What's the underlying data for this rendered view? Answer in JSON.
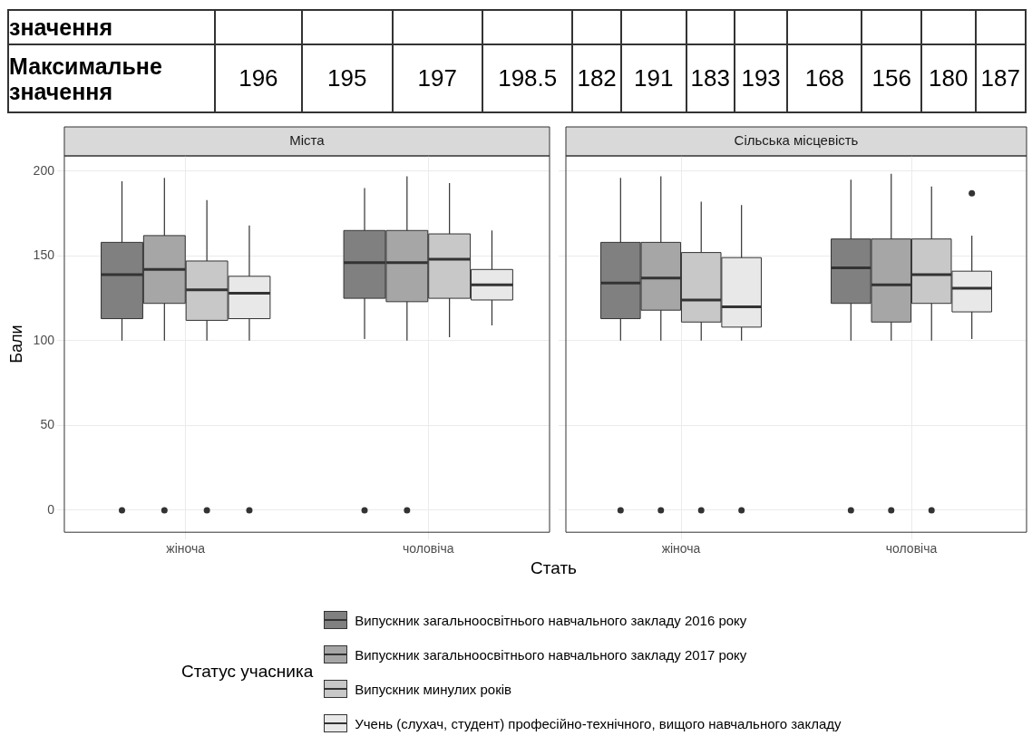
{
  "chart_data": [
    {
      "type": "box",
      "title": "Міста",
      "xlabel": "Стать",
      "ylabel": "Бали",
      "legend_title": "Статус учасника",
      "legend": "bottom",
      "grid": true,
      "annotations": [
        "значення",
        "Максимальне значення",
        "196",
        "195",
        "197",
        "198.5",
        "182",
        "191",
        "183",
        "193",
        "168",
        "156",
        "180",
        "187"
      ],
      "categories": [
        "жіноча",
        "чоловіча"
      ],
      "ylim": [
        -13,
        209
      ],
      "yticks": [
        0,
        50,
        100,
        150,
        200
      ],
      "series": [
        {
          "name": "Випускник загальноосвітнього навчального закладу 2016 року",
          "color": "#808080",
          "boxes": [
            {
              "low": 100,
              "q1": 113,
              "median": 139,
              "q3": 158,
              "high": 194,
              "outliers": [
                0
              ]
            },
            {
              "low": 101,
              "q1": 125,
              "median": 146,
              "q3": 165,
              "high": 190,
              "outliers": [
                0
              ]
            }
          ]
        },
        {
          "name": "Випускник загальноосвітнього навчального закладу 2017 року",
          "color": "#a6a6a6",
          "boxes": [
            {
              "low": 100,
              "q1": 122,
              "median": 142,
              "q3": 162,
              "high": 196,
              "outliers": [
                0
              ]
            },
            {
              "low": 100,
              "q1": 123,
              "median": 146,
              "q3": 165,
              "high": 197,
              "outliers": [
                0
              ]
            }
          ]
        },
        {
          "name": "Випускник минулих років",
          "color": "#c8c8c8",
          "boxes": [
            {
              "low": 100,
              "q1": 112,
              "median": 130,
              "q3": 147,
              "high": 183,
              "outliers": [
                0
              ]
            },
            {
              "low": 102,
              "q1": 125,
              "median": 148,
              "q3": 163,
              "high": 193
            }
          ]
        },
        {
          "name": "Учень (слухач, студент) професійно-технічного, вищого навчального закладу",
          "color": "#e8e8e8",
          "boxes": [
            {
              "low": 100,
              "q1": 113,
              "median": 128,
              "q3": 138,
              "high": 168,
              "outliers": [
                0
              ]
            },
            {
              "low": 109,
              "q1": 124,
              "median": 133,
              "q3": 142,
              "high": 165
            }
          ]
        }
      ]
    },
    {
      "type": "box",
      "title": "Сільська місцевість",
      "grid": true,
      "tick_labels": "x",
      "categories": [
        "жіноча",
        "чоловіча"
      ],
      "ylim": [
        -13,
        209
      ],
      "yticks": [
        0,
        50,
        100,
        150,
        200
      ],
      "series": [
        {
          "color": "#808080",
          "boxes": [
            {
              "low": 100,
              "q1": 113,
              "median": 134,
              "q3": 158,
              "high": 196,
              "outliers": [
                0
              ]
            },
            {
              "low": 100,
              "q1": 122,
              "median": 143,
              "q3": 160,
              "high": 195,
              "outliers": [
                0
              ]
            }
          ]
        },
        {
          "color": "#a6a6a6",
          "boxes": [
            {
              "low": 100,
              "q1": 118,
              "median": 137,
              "q3": 158,
              "high": 197,
              "outliers": [
                0
              ]
            },
            {
              "low": 100,
              "q1": 111,
              "median": 133,
              "q3": 160,
              "high": 198.5,
              "outliers": [
                0
              ]
            }
          ]
        },
        {
          "color": "#c8c8c8",
          "boxes": [
            {
              "low": 100,
              "q1": 111,
              "median": 124,
              "q3": 152,
              "high": 182,
              "outliers": [
                0
              ]
            },
            {
              "low": 100,
              "q1": 122,
              "median": 139,
              "q3": 160,
              "high": 191,
              "outliers": [
                0
              ]
            }
          ]
        },
        {
          "color": "#e8e8e8",
          "boxes": [
            {
              "low": 100,
              "q1": 108,
              "median": 120,
              "q3": 149,
              "high": 180,
              "outliers": [
                0
              ]
            },
            {
              "low": 101,
              "q1": 117,
              "median": 131,
              "q3": 141,
              "high": 162,
              "outliers": [
                187
              ]
            }
          ]
        }
      ]
    }
  ]
}
